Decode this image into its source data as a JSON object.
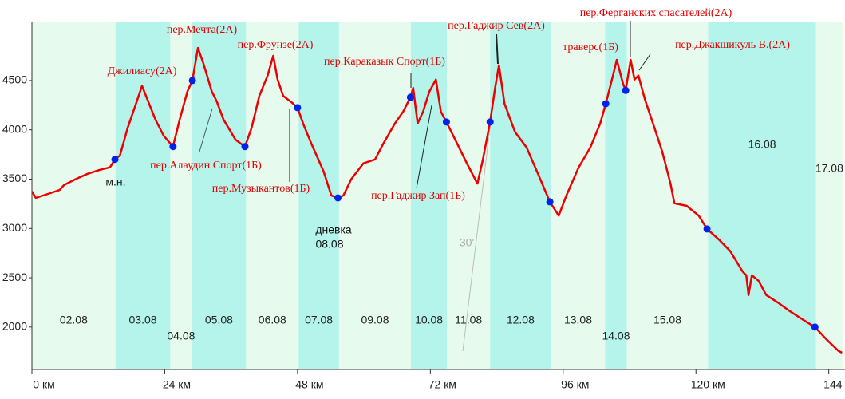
{
  "chart_data": {
    "type": "line",
    "x": [
      0,
      0.7,
      2.9,
      5.0,
      5.8,
      7.9,
      10.1,
      12.3,
      14.1,
      15.0,
      15.9,
      17.3,
      18.8,
      19.9,
      20.9,
      22.3,
      23.8,
      25.5,
      26.7,
      28.1,
      29.0,
      30.0,
      31.0,
      32.5,
      33.4,
      34.6,
      36.8,
      38.5,
      39.7,
      41.1,
      42.6,
      43.6,
      44.4,
      45.4,
      46.9,
      48.0,
      49.0,
      50.5,
      52.7,
      54.1,
      55.3,
      56.3,
      57.7,
      59.9,
      62.0,
      63.5,
      65.6,
      67.1,
      68.4,
      68.9,
      69.7,
      70.7,
      71.8,
      73.0,
      73.9,
      74.9,
      76.5,
      78.6,
      80.5,
      81.5,
      82.8,
      83.7,
      84.4,
      85.4,
      87.3,
      89.4,
      91.6,
      93.6,
      95.2,
      96.6,
      98.8,
      100.9,
      102.7,
      103.7,
      105.0,
      105.7,
      106.8,
      107.3,
      108.2,
      108.9,
      109.6,
      110.8,
      112.5,
      113.9,
      115.4,
      116.1,
      118.3,
      120.5,
      122.0,
      124.1,
      126.2,
      128.4,
      129.1,
      129.5,
      130.1,
      131.3,
      132.7,
      134.9,
      137.0,
      139.2,
      141.5,
      143.5,
      145.7,
      146.4
    ],
    "values": [
      3375,
      3310,
      3350,
      3390,
      3440,
      3500,
      3555,
      3595,
      3620,
      3700,
      3740,
      4020,
      4265,
      4445,
      4305,
      4105,
      3940,
      3830,
      4105,
      4390,
      4500,
      4830,
      4670,
      4390,
      4290,
      4105,
      3900,
      3830,
      4020,
      4345,
      4550,
      4750,
      4510,
      4345,
      4280,
      4225,
      4065,
      3860,
      3580,
      3335,
      3310,
      3335,
      3500,
      3660,
      3700,
      3860,
      4065,
      4185,
      4330,
      4425,
      4065,
      4185,
      4385,
      4510,
      4185,
      4080,
      3900,
      3660,
      3455,
      3700,
      4080,
      4425,
      4655,
      4265,
      3980,
      3820,
      3535,
      3270,
      3130,
      3335,
      3620,
      3820,
      4065,
      4265,
      4550,
      4710,
      4470,
      4400,
      4710,
      4510,
      4550,
      4305,
      4020,
      3780,
      3455,
      3255,
      3230,
      3130,
      2995,
      2890,
      2770,
      2565,
      2525,
      2325,
      2525,
      2470,
      2325,
      2245,
      2160,
      2080,
      2000,
      1880,
      1760,
      1740
    ],
    "color": "#ee0000",
    "points": {
      "color": "#0022ee",
      "x": [
        15.0,
        25.5,
        29.0,
        38.5,
        48.0,
        55.3,
        68.4,
        74.9,
        82.8,
        93.6,
        103.7,
        107.3,
        122.0,
        141.5
      ],
      "values": [
        3700,
        3830,
        4500,
        3830,
        4225,
        3310,
        4330,
        4080,
        4080,
        3270,
        4265,
        4400,
        2995,
        2000
      ]
    },
    "days": [
      {
        "label": "02.08",
        "from": 0,
        "to": 15.1
      },
      {
        "label": "03.08",
        "from": 15.1,
        "to": 25.0
      },
      {
        "label": "04.08",
        "from": 25.0,
        "to": 28.9
      },
      {
        "label": "05.08",
        "from": 28.9,
        "to": 38.7
      },
      {
        "label": "06.08",
        "from": 38.7,
        "to": 48.2
      },
      {
        "label": "07.08",
        "from": 48.2,
        "to": 55.5
      },
      {
        "label": "09.08",
        "from": 55.5,
        "to": 68.5
      },
      {
        "label": "10.08",
        "from": 68.5,
        "to": 75.0
      },
      {
        "label": "11.08",
        "from": 75.0,
        "to": 82.8
      },
      {
        "label": "12.08",
        "from": 82.8,
        "to": 93.8
      },
      {
        "label": "13.08",
        "from": 93.8,
        "to": 103.6
      },
      {
        "label": "14.08",
        "from": 103.6,
        "to": 107.5
      },
      {
        "label": "15.08",
        "from": 107.5,
        "to": 122.2
      },
      {
        "label": "16.08",
        "from": 122.2,
        "to": 141.7
      },
      {
        "label": "17.08",
        "from": 141.7,
        "to": 146.5
      }
    ],
    "band_colors": [
      "#e6fbee",
      "#b4f4ea"
    ],
    "passes": [
      "Джилиасу(2А)",
      "пер.Мечта(2А)",
      "пер.Фрунзе(2А)",
      "пер.Караказык Спорт(1Б)",
      "пер.Гаджир Сев(2А)",
      "пер.Ферганских спасателей(2А)",
      "траверс(1Б)",
      "пер.Джакшикуль В.(2А)",
      "пер.Алаудин Спорт(1Б)",
      "пер.Музыкантов(1Б)",
      "пер.Гаджир Зап(1Б)"
    ],
    "notes": [
      "м.н.",
      "дневка",
      "08.08",
      "30'"
    ],
    "xlim": [
      0,
      146.5
    ],
    "ylim": [
      1570,
      5090
    ],
    "xticks": [
      {
        "value": 0,
        "label": "0 км"
      },
      {
        "value": 24,
        "label": "24 км"
      },
      {
        "value": 48,
        "label": "48 км"
      },
      {
        "value": 72,
        "label": "72 км"
      },
      {
        "value": 96,
        "label": "96 км"
      },
      {
        "value": 120,
        "label": "120 км"
      },
      {
        "value": 144,
        "label": "144 км"
      }
    ],
    "yticks": [
      2000,
      2500,
      3000,
      3500,
      4000,
      4500
    ]
  }
}
